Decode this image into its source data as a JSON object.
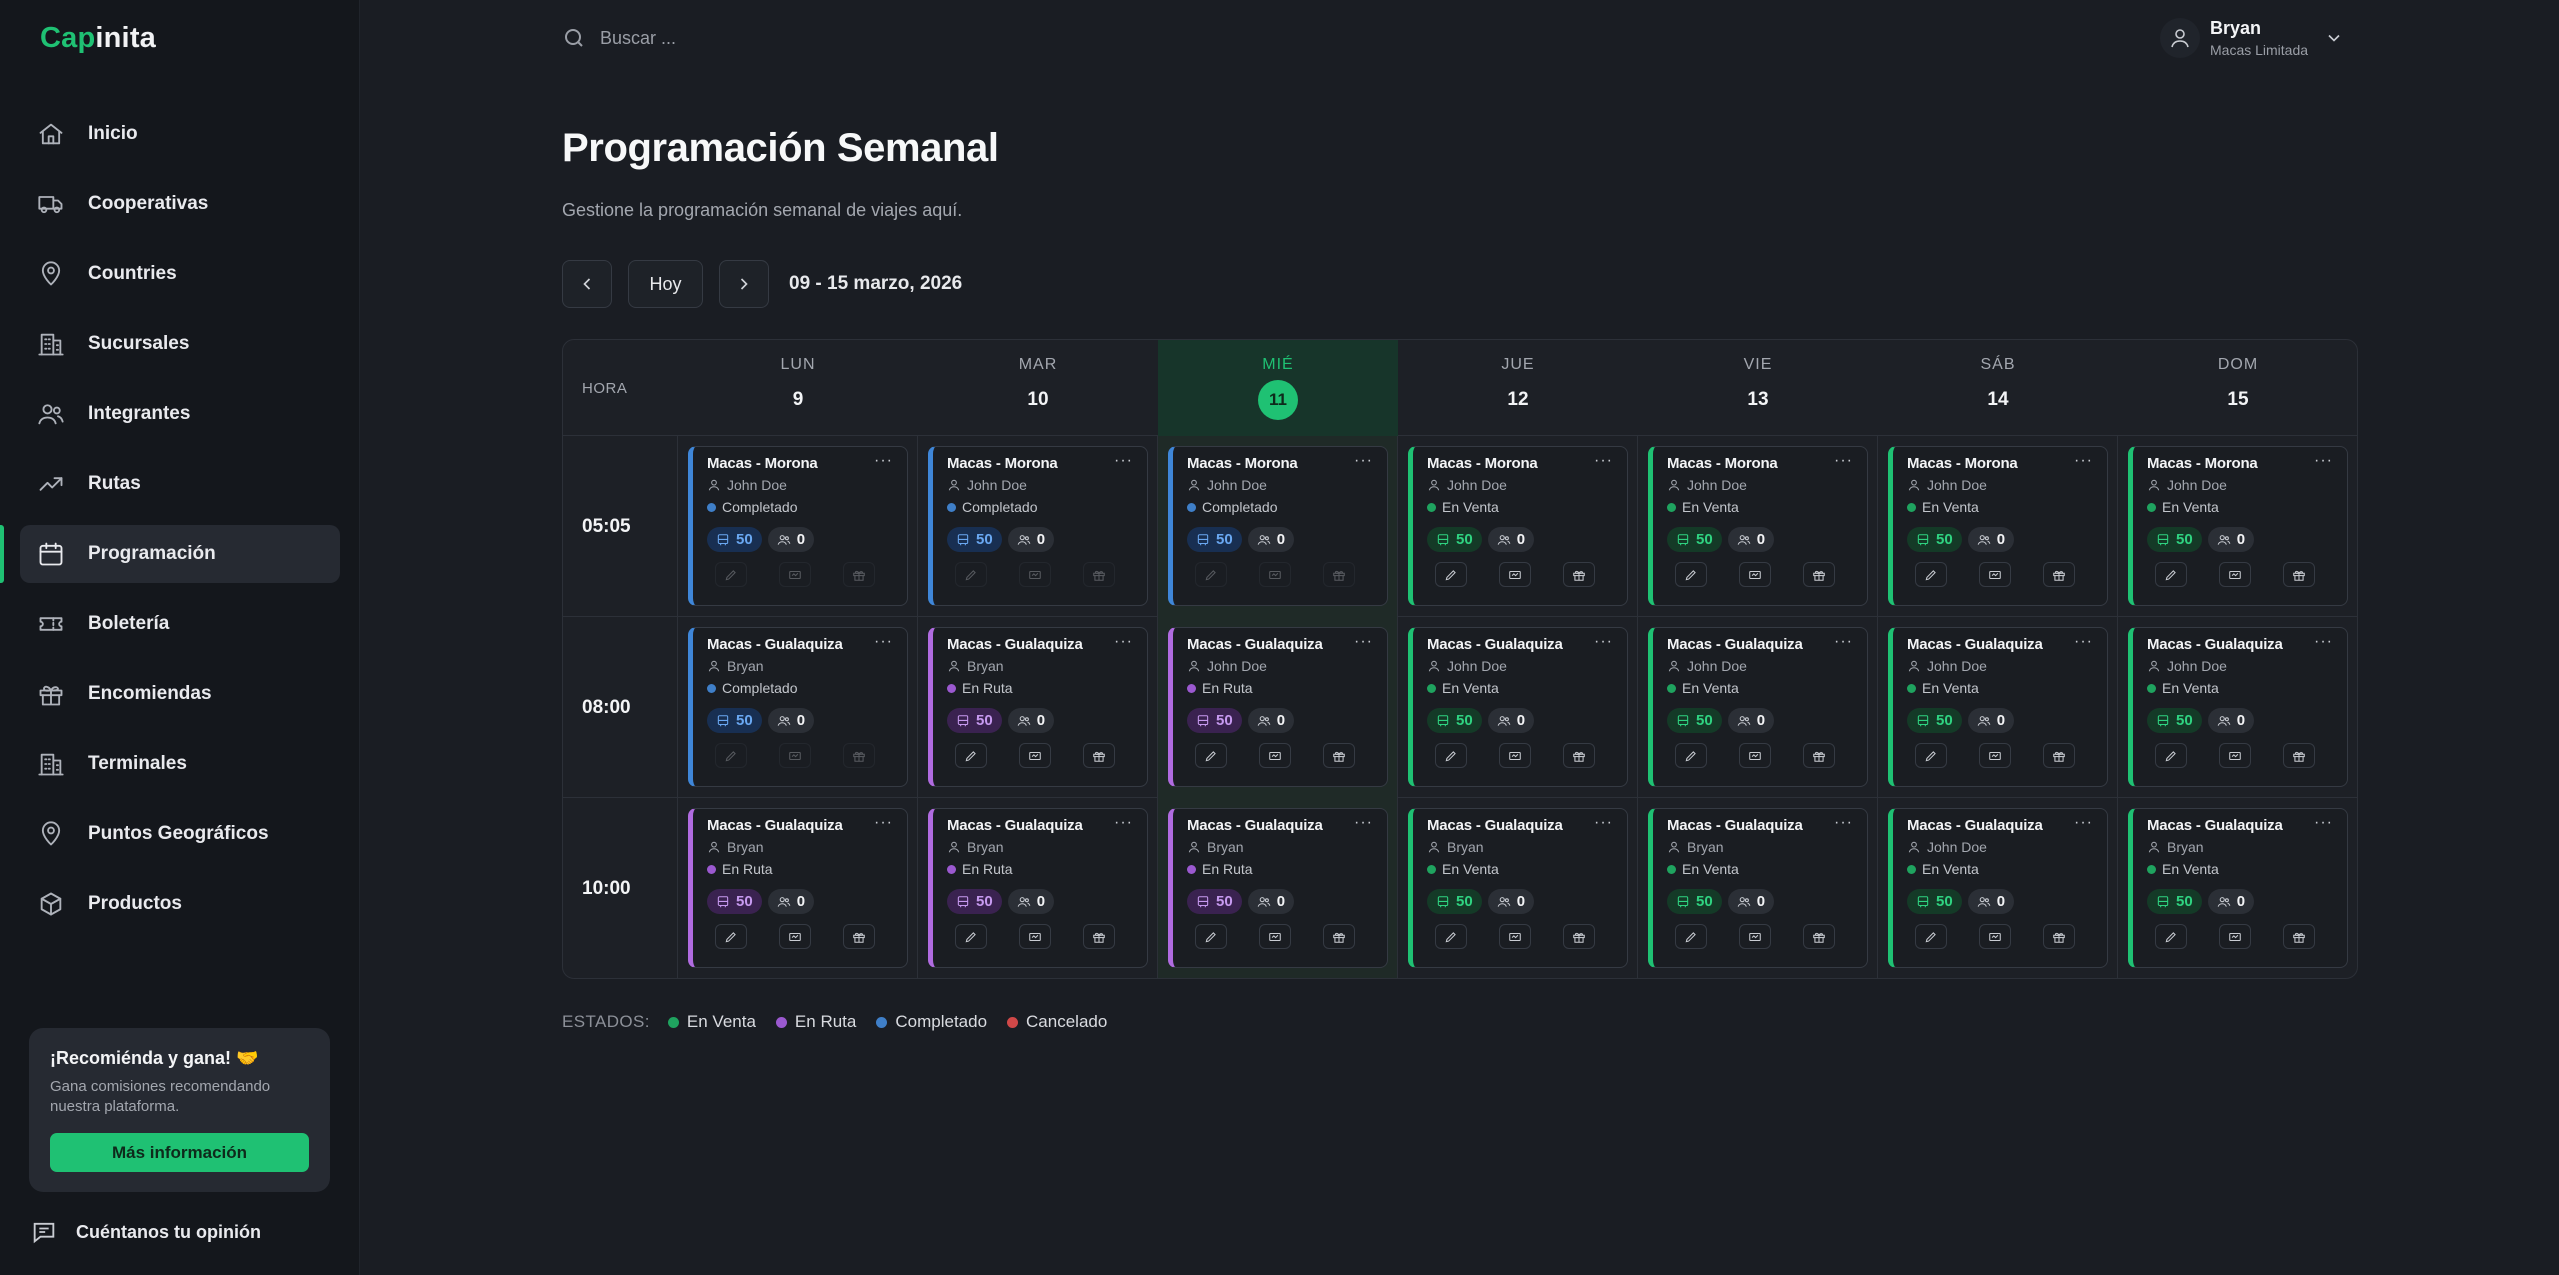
{
  "brand": {
    "part1": "Cap",
    "part2": "inita"
  },
  "sidebar": {
    "items": [
      {
        "label": "Inicio",
        "icon": "home-icon"
      },
      {
        "label": "Cooperativas",
        "icon": "truck-icon"
      },
      {
        "label": "Countries",
        "icon": "map-pin-icon"
      },
      {
        "label": "Sucursales",
        "icon": "building-icon"
      },
      {
        "label": "Integrantes",
        "icon": "users-icon"
      },
      {
        "label": "Rutas",
        "icon": "trending-icon"
      },
      {
        "label": "Programación",
        "icon": "calendar-icon",
        "active": true
      },
      {
        "label": "Boletería",
        "icon": "ticket-icon"
      },
      {
        "label": "Encomiendas",
        "icon": "gift-icon"
      },
      {
        "label": "Terminales",
        "icon": "building-icon"
      },
      {
        "label": "Puntos Geográficos",
        "icon": "map-pin-icon"
      },
      {
        "label": "Productos",
        "icon": "box-icon"
      }
    ],
    "promo": {
      "title": "¡Recomiénda y gana! 🤝",
      "text": "Gana comisiones recomendando nuestra plataforma.",
      "button": "Más información"
    },
    "feedback": "Cuéntanos tu opinión"
  },
  "header": {
    "search_placeholder": "Buscar ...",
    "user": {
      "name": "Bryan",
      "org": "Macas Limitada"
    }
  },
  "page": {
    "title": "Programación Semanal",
    "subtitle": "Gestione la programación semanal de viajes aquí.",
    "today_button": "Hoy",
    "range": "09 - 15 marzo, 2026"
  },
  "schedule": {
    "hora_label": "HORA",
    "days": [
      {
        "name": "LUN",
        "num": "9"
      },
      {
        "name": "MAR",
        "num": "10"
      },
      {
        "name": "MIÉ",
        "num": "11",
        "today": true
      },
      {
        "name": "JUE",
        "num": "12"
      },
      {
        "name": "VIE",
        "num": "13"
      },
      {
        "name": "SÁB",
        "num": "14"
      },
      {
        "name": "DOM",
        "num": "15"
      }
    ],
    "rows": [
      {
        "time": "05:05",
        "trips": [
          {
            "route": "Macas - Morona",
            "driver": "John Doe",
            "status": "Completado",
            "seats": "50",
            "pax": "0"
          },
          {
            "route": "Macas - Morona",
            "driver": "John Doe",
            "status": "Completado",
            "seats": "50",
            "pax": "0"
          },
          {
            "route": "Macas - Morona",
            "driver": "John Doe",
            "status": "Completado",
            "seats": "50",
            "pax": "0"
          },
          {
            "route": "Macas - Morona",
            "driver": "John Doe",
            "status": "En Venta",
            "seats": "50",
            "pax": "0"
          },
          {
            "route": "Macas - Morona",
            "driver": "John Doe",
            "status": "En Venta",
            "seats": "50",
            "pax": "0"
          },
          {
            "route": "Macas - Morona",
            "driver": "John Doe",
            "status": "En Venta",
            "seats": "50",
            "pax": "0"
          },
          {
            "route": "Macas - Morona",
            "driver": "John Doe",
            "status": "En Venta",
            "seats": "50",
            "pax": "0"
          }
        ]
      },
      {
        "time": "08:00",
        "trips": [
          {
            "route": "Macas - Gualaquiza",
            "driver": "Bryan",
            "status": "Completado",
            "seats": "50",
            "pax": "0"
          },
          {
            "route": "Macas - Gualaquiza",
            "driver": "Bryan",
            "status": "En Ruta",
            "seats": "50",
            "pax": "0"
          },
          {
            "route": "Macas - Gualaquiza",
            "driver": "John Doe",
            "status": "En Ruta",
            "seats": "50",
            "pax": "0"
          },
          {
            "route": "Macas - Gualaquiza",
            "driver": "John Doe",
            "status": "En Venta",
            "seats": "50",
            "pax": "0"
          },
          {
            "route": "Macas - Gualaquiza",
            "driver": "John Doe",
            "status": "En Venta",
            "seats": "50",
            "pax": "0"
          },
          {
            "route": "Macas - Gualaquiza",
            "driver": "John Doe",
            "status": "En Venta",
            "seats": "50",
            "pax": "0"
          },
          {
            "route": "Macas - Gualaquiza",
            "driver": "John Doe",
            "status": "En Venta",
            "seats": "50",
            "pax": "0"
          }
        ]
      },
      {
        "time": "10:00",
        "trips": [
          {
            "route": "Macas - Gualaquiza",
            "driver": "Bryan",
            "status": "En Ruta",
            "seats": "50",
            "pax": "0"
          },
          {
            "route": "Macas - Gualaquiza",
            "driver": "Bryan",
            "status": "En Ruta",
            "seats": "50",
            "pax": "0"
          },
          {
            "route": "Macas - Gualaquiza",
            "driver": "Bryan",
            "status": "En Ruta",
            "seats": "50",
            "pax": "0"
          },
          {
            "route": "Macas - Gualaquiza",
            "driver": "Bryan",
            "status": "En Venta",
            "seats": "50",
            "pax": "0"
          },
          {
            "route": "Macas - Gualaquiza",
            "driver": "Bryan",
            "status": "En Venta",
            "seats": "50",
            "pax": "0"
          },
          {
            "route": "Macas - Gualaquiza",
            "driver": "John Doe",
            "status": "En Venta",
            "seats": "50",
            "pax": "0"
          },
          {
            "route": "Macas - Gualaquiza",
            "driver": "Bryan",
            "status": "En Venta",
            "seats": "50",
            "pax": "0"
          }
        ]
      }
    ]
  },
  "legend": {
    "label": "ESTADOS:",
    "items": [
      {
        "label": "En Venta",
        "color": "#1fa35f"
      },
      {
        "label": "En Ruta",
        "color": "#9b59d0"
      },
      {
        "label": "Completado",
        "color": "#3f7fc8"
      },
      {
        "label": "Cancelado",
        "color": "#d04848"
      }
    ]
  },
  "colors": {
    "accent": "#1fc173",
    "en_venta": "#1fa35f",
    "en_ruta": "#9b59d0",
    "completado": "#3f7fc8",
    "cancelado": "#d04848"
  }
}
